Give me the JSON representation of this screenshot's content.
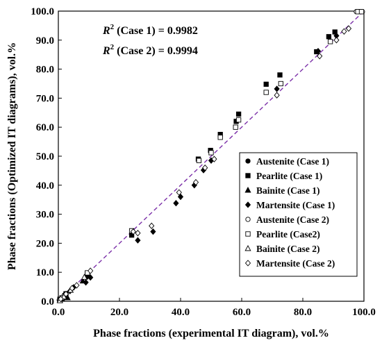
{
  "chart_data": {
    "type": "scatter",
    "xlabel": "Phase fractions (experimental IT diagram), vol.%",
    "ylabel": "Phase fractions (Optimized IT diagrams), vol.%",
    "xlim": [
      0,
      100
    ],
    "ylim": [
      0,
      100
    ],
    "x_ticks": [
      "0.0",
      "20.0",
      "40.0",
      "60.0",
      "80.0",
      "100.0"
    ],
    "y_ticks": [
      "0.0",
      "10.0",
      "20.0",
      "30.0",
      "40.0",
      "50.0",
      "60.0",
      "70.0",
      "80.0",
      "90.0",
      "100.0"
    ],
    "grid": false,
    "legend_position": "bottom-right",
    "annotations": {
      "case1": {
        "prefix": "R",
        "sup": "2",
        "text": " (Case 1) = 0.9982"
      },
      "case2": {
        "prefix": "R",
        "sup": "2",
        "text": " (Case 2) = 0.9994"
      }
    },
    "reference_line": {
      "style": "dashed",
      "color": "#7b2fa8",
      "from": [
        0,
        0
      ],
      "to": [
        100,
        100
      ]
    },
    "series": [
      {
        "name": "Austenite (Case 1)",
        "marker": "circle",
        "filled": true,
        "points": [
          [
            0.3,
            0.4
          ],
          [
            0.8,
            0.6
          ],
          [
            1.5,
            1.2
          ],
          [
            2.0,
            2.2
          ],
          [
            98.2,
            99.8
          ],
          [
            99.0,
            99.8
          ]
        ]
      },
      {
        "name": "Pearlite (Case 1)",
        "marker": "square",
        "filled": true,
        "points": [
          [
            0.5,
            0.7
          ],
          [
            2.5,
            2.6
          ],
          [
            9.5,
            9.5
          ],
          [
            24.0,
            22.8
          ],
          [
            45.8,
            49.0
          ],
          [
            49.8,
            52.0
          ],
          [
            53.0,
            57.5
          ],
          [
            58.2,
            62.0
          ],
          [
            59.0,
            64.5
          ],
          [
            68.0,
            74.8
          ],
          [
            72.5,
            78.0
          ],
          [
            84.5,
            86.0
          ],
          [
            88.5,
            91.2
          ],
          [
            90.5,
            92.8
          ]
        ]
      },
      {
        "name": "Bainite (Case 1)",
        "marker": "triangle",
        "filled": true,
        "points": [
          [
            0.5,
            0.3
          ],
          [
            1.2,
            0.8
          ],
          [
            3.0,
            1.2
          ],
          [
            8.0,
            7.0
          ],
          [
            9.5,
            9.0
          ]
        ]
      },
      {
        "name": "Martensite (Case 1)",
        "marker": "diamond",
        "filled": true,
        "points": [
          [
            1.0,
            0.6
          ],
          [
            2.2,
            1.5
          ],
          [
            3.8,
            3.5
          ],
          [
            5.0,
            4.8
          ],
          [
            9.0,
            6.5
          ],
          [
            9.5,
            8.5
          ],
          [
            10.5,
            8.2
          ],
          [
            26.0,
            21.0
          ],
          [
            31.0,
            24.0
          ],
          [
            38.5,
            33.8
          ],
          [
            40.0,
            36.0
          ],
          [
            44.5,
            40.0
          ],
          [
            47.5,
            45.2
          ],
          [
            50.0,
            48.5
          ],
          [
            71.5,
            73.2
          ],
          [
            85.0,
            86.2
          ],
          [
            91.0,
            91.5
          ]
        ]
      },
      {
        "name": "Austenite (Case 2)",
        "marker": "circle",
        "filled": false,
        "points": [
          [
            0.5,
            0.5
          ],
          [
            1.0,
            1.0
          ],
          [
            1.8,
            1.8
          ],
          [
            97.5,
            99.8
          ],
          [
            99.5,
            99.8
          ]
        ]
      },
      {
        "name": "Pearlite (Case2)",
        "marker": "square",
        "filled": false,
        "points": [
          [
            1.2,
            1.2
          ],
          [
            9.5,
            9.8
          ],
          [
            24.0,
            24.3
          ],
          [
            46.0,
            48.5
          ],
          [
            50.0,
            51.2
          ],
          [
            53.0,
            56.5
          ],
          [
            58.0,
            60.0
          ],
          [
            59.0,
            62.5
          ],
          [
            68.0,
            72.0
          ],
          [
            72.8,
            75.0
          ],
          [
            89.0,
            89.5
          ],
          [
            98.0,
            99.8
          ],
          [
            99.2,
            99.8
          ]
        ]
      },
      {
        "name": "Bainite (Case 2)",
        "marker": "triangle",
        "filled": false,
        "points": [
          [
            0.5,
            0.2
          ],
          [
            1.8,
            1.5
          ],
          [
            4.0,
            3.8
          ],
          [
            8.5,
            8.3
          ]
        ]
      },
      {
        "name": "Martensite (Case 2)",
        "marker": "diamond",
        "filled": false,
        "points": [
          [
            0.8,
            0.8
          ],
          [
            2.5,
            2.5
          ],
          [
            4.5,
            4.5
          ],
          [
            6.0,
            5.5
          ],
          [
            10.5,
            10.5
          ],
          [
            24.5,
            24.0
          ],
          [
            26.0,
            23.5
          ],
          [
            30.5,
            26.0
          ],
          [
            39.5,
            37.5
          ],
          [
            45.0,
            41.0
          ],
          [
            48.0,
            46.0
          ],
          [
            51.0,
            49.0
          ],
          [
            71.5,
            71.0
          ],
          [
            85.5,
            84.5
          ],
          [
            91.0,
            90.0
          ],
          [
            93.5,
            93.0
          ],
          [
            95.0,
            94.0
          ]
        ]
      }
    ]
  }
}
